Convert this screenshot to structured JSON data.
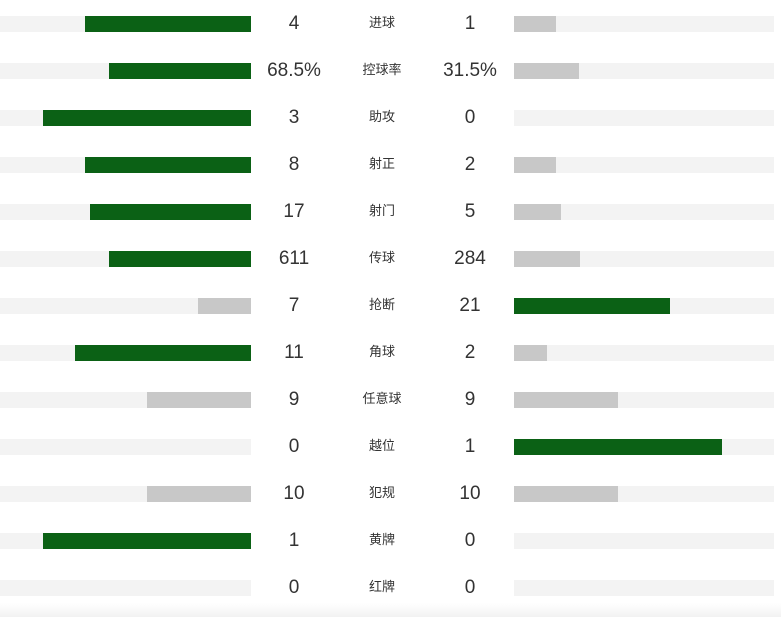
{
  "colors": {
    "winner_bar": "#0b6115",
    "loser_bar": "#c8c8c8",
    "track": "#f3f3f3",
    "text": "#333333"
  },
  "stats": [
    {
      "label": "进球",
      "home": "4",
      "away": "1",
      "home_ratio": 0.66,
      "away_ratio": 0.16,
      "leader": "home"
    },
    {
      "label": "控球率",
      "home": "68.5%",
      "away": "31.5%",
      "home_ratio": 0.565,
      "away_ratio": 0.25,
      "leader": "home"
    },
    {
      "label": "助攻",
      "home": "3",
      "away": "0",
      "home_ratio": 0.83,
      "away_ratio": 0.0,
      "leader": "home"
    },
    {
      "label": "射正",
      "home": "8",
      "away": "2",
      "home_ratio": 0.66,
      "away_ratio": 0.16,
      "leader": "home"
    },
    {
      "label": "射门",
      "home": "17",
      "away": "5",
      "home_ratio": 0.64,
      "away_ratio": 0.18,
      "leader": "home"
    },
    {
      "label": "传球",
      "home": "611",
      "away": "284",
      "home_ratio": 0.565,
      "away_ratio": 0.255,
      "leader": "home"
    },
    {
      "label": "抢断",
      "home": "7",
      "away": "21",
      "home_ratio": 0.21,
      "away_ratio": 0.6,
      "leader": "away"
    },
    {
      "label": "角球",
      "home": "11",
      "away": "2",
      "home_ratio": 0.7,
      "away_ratio": 0.125,
      "leader": "home"
    },
    {
      "label": "任意球",
      "home": "9",
      "away": "9",
      "home_ratio": 0.415,
      "away_ratio": 0.4,
      "leader": "tie"
    },
    {
      "label": "越位",
      "home": "0",
      "away": "1",
      "home_ratio": 0.0,
      "away_ratio": 0.8,
      "leader": "away"
    },
    {
      "label": "犯规",
      "home": "10",
      "away": "10",
      "home_ratio": 0.415,
      "away_ratio": 0.4,
      "leader": "tie"
    },
    {
      "label": "黄牌",
      "home": "1",
      "away": "0",
      "home_ratio": 0.83,
      "away_ratio": 0.0,
      "leader": "home"
    },
    {
      "label": "红牌",
      "home": "0",
      "away": "0",
      "home_ratio": 0.0,
      "away_ratio": 0.0,
      "leader": "tie"
    }
  ]
}
